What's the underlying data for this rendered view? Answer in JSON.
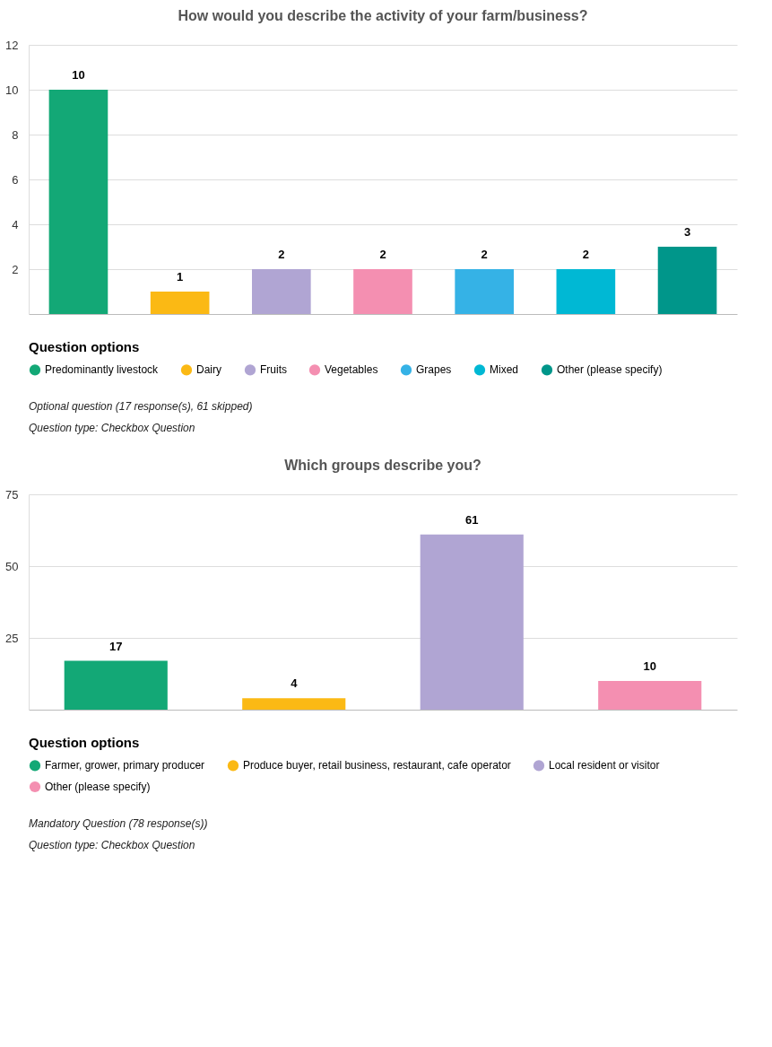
{
  "chart_data": [
    {
      "type": "bar",
      "title": "How would you describe the activity of your farm/business?",
      "categories": [
        null,
        null,
        null,
        null,
        null,
        null,
        null
      ],
      "series": [
        {
          "name": "Predominantly livestock",
          "color": "#13a876",
          "values": [
            10,
            null,
            null,
            null,
            null,
            null,
            null
          ]
        },
        {
          "name": "Dairy",
          "color": "#fbb914",
          "values": [
            null,
            1,
            null,
            null,
            null,
            null,
            null
          ]
        },
        {
          "name": "Fruits",
          "color": "#b0a5d3",
          "values": [
            null,
            null,
            2,
            null,
            null,
            null,
            null
          ]
        },
        {
          "name": "Vegetables",
          "color": "#f48fb1",
          "values": [
            null,
            null,
            null,
            2,
            null,
            null,
            null
          ]
        },
        {
          "name": "Grapes",
          "color": "#35b2e6",
          "values": [
            null,
            null,
            null,
            null,
            2,
            null,
            null
          ]
        },
        {
          "name": "Mixed",
          "color": "#00b8d4",
          "values": [
            null,
            null,
            null,
            null,
            null,
            2,
            null
          ]
        },
        {
          "name": "Other (please specify)",
          "color": "#00968a",
          "values": [
            null,
            null,
            null,
            null,
            null,
            null,
            3
          ]
        }
      ],
      "ylim": [
        0,
        12
      ],
      "yticks": [
        2,
        4,
        6,
        8,
        10,
        12
      ],
      "grid": "y",
      "legend": "bottom",
      "legend_title": "Question options",
      "data_labels": true,
      "tick_labels": "y",
      "annotations": [
        "Optional question (17 response(s), 61 skipped)",
        "Question type: Checkbox Question"
      ]
    },
    {
      "type": "bar",
      "title": "Which groups describe you?",
      "categories": [
        null,
        null,
        null,
        null
      ],
      "series": [
        {
          "name": "Farmer, grower, primary producer",
          "color": "#13a876",
          "values": [
            17,
            null,
            null,
            null
          ]
        },
        {
          "name": "Produce buyer, retail business, restaurant, cafe operator",
          "color": "#fbb914",
          "values": [
            null,
            4,
            null,
            null
          ]
        },
        {
          "name": "Local resident or visitor",
          "color": "#b0a5d3",
          "values": [
            null,
            null,
            61,
            null
          ]
        },
        {
          "name": "Other (please specify)",
          "color": "#f48fb1",
          "values": [
            null,
            null,
            null,
            10
          ]
        }
      ],
      "ylim": [
        0,
        75
      ],
      "yticks": [
        25,
        50,
        75
      ],
      "grid": "y",
      "legend": "bottom",
      "legend_title": "Question options",
      "data_labels": true,
      "tick_labels": "y",
      "annotations": [
        "Mandatory Question (78 response(s))",
        "Question type: Checkbox Question"
      ]
    }
  ]
}
